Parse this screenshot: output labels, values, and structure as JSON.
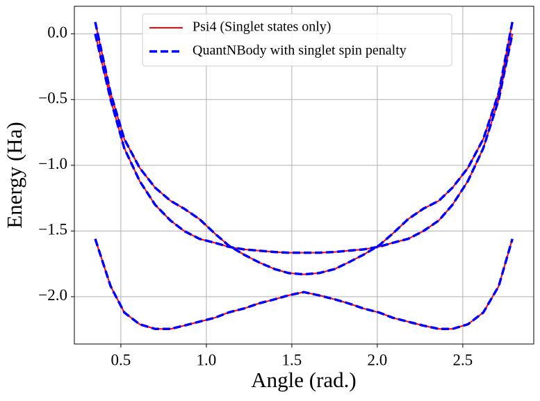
{
  "chart_data": {
    "type": "line",
    "xlabel": "Angle (rad.)",
    "ylabel": "Energy (Ha)",
    "xlim": [
      0.228,
      2.915
    ],
    "ylim": [
      -2.36,
      0.21
    ],
    "xticks": [
      {
        "value": 0.5,
        "label": "0.5"
      },
      {
        "value": 1.0,
        "label": "1.0"
      },
      {
        "value": 1.5,
        "label": "1.5"
      },
      {
        "value": 2.0,
        "label": "2.0"
      },
      {
        "value": 2.5,
        "label": "2.5"
      }
    ],
    "yticks": [
      {
        "value": 0.0,
        "label": "0.0"
      },
      {
        "value": -0.5,
        "label": "−0.5"
      },
      {
        "value": -1.0,
        "label": "−1.0"
      },
      {
        "value": -1.5,
        "label": "−1.5"
      },
      {
        "value": -2.0,
        "label": "−2.0"
      }
    ],
    "grid": true,
    "legend": "upper center",
    "x": [
      0.35,
      0.44,
      0.52,
      0.61,
      0.7,
      0.79,
      0.87,
      0.96,
      1.05,
      1.13,
      1.22,
      1.31,
      1.4,
      1.48,
      1.57,
      1.66,
      1.75,
      1.83,
      1.92,
      2.01,
      2.09,
      2.18,
      2.27,
      2.36,
      2.44,
      2.53,
      2.62,
      2.71,
      2.79
    ],
    "series": [
      {
        "name": "Psi4 (Singlet states only)",
        "color": "#ff0000",
        "dashed": false,
        "curves": [
          [
            -1.56,
            -1.92,
            -2.12,
            -2.21,
            -2.245,
            -2.245,
            -2.22,
            -2.19,
            -2.16,
            -2.12,
            -2.09,
            -2.05,
            -2.02,
            -1.99,
            -1.965,
            -1.99,
            -2.02,
            -2.05,
            -2.09,
            -2.12,
            -2.16,
            -2.19,
            -2.22,
            -2.245,
            -2.245,
            -2.21,
            -2.12,
            -1.92,
            -1.56
          ],
          [
            0.09,
            -0.45,
            -0.8,
            -1.02,
            -1.17,
            -1.27,
            -1.33,
            -1.41,
            -1.52,
            -1.61,
            -1.68,
            -1.74,
            -1.79,
            -1.82,
            -1.83,
            -1.82,
            -1.79,
            -1.74,
            -1.68,
            -1.61,
            -1.52,
            -1.41,
            -1.33,
            -1.27,
            -1.17,
            -1.02,
            -0.8,
            -0.45,
            0.09
          ],
          [
            0.0,
            -0.5,
            -0.87,
            -1.12,
            -1.3,
            -1.42,
            -1.5,
            -1.56,
            -1.59,
            -1.62,
            -1.64,
            -1.65,
            -1.66,
            -1.665,
            -1.665,
            -1.665,
            -1.66,
            -1.65,
            -1.64,
            -1.62,
            -1.59,
            -1.56,
            -1.5,
            -1.42,
            -1.3,
            -1.12,
            -0.87,
            -0.5,
            0.0
          ]
        ]
      },
      {
        "name": "QuantNBody with singlet spin penalty",
        "color": "#0000ff",
        "dashed": true,
        "curves": [
          [
            -1.56,
            -1.92,
            -2.12,
            -2.21,
            -2.245,
            -2.245,
            -2.22,
            -2.19,
            -2.16,
            -2.12,
            -2.09,
            -2.05,
            -2.02,
            -1.99,
            -1.965,
            -1.99,
            -2.02,
            -2.05,
            -2.09,
            -2.12,
            -2.16,
            -2.19,
            -2.22,
            -2.245,
            -2.245,
            -2.21,
            -2.12,
            -1.92,
            -1.56
          ],
          [
            0.09,
            -0.45,
            -0.8,
            -1.02,
            -1.17,
            -1.27,
            -1.33,
            -1.41,
            -1.52,
            -1.61,
            -1.68,
            -1.74,
            -1.79,
            -1.82,
            -1.83,
            -1.82,
            -1.79,
            -1.74,
            -1.68,
            -1.61,
            -1.52,
            -1.41,
            -1.33,
            -1.27,
            -1.17,
            -1.02,
            -0.8,
            -0.45,
            0.09
          ],
          [
            0.0,
            -0.5,
            -0.87,
            -1.12,
            -1.3,
            -1.42,
            -1.5,
            -1.56,
            -1.59,
            -1.62,
            -1.64,
            -1.65,
            -1.66,
            -1.665,
            -1.665,
            -1.665,
            -1.66,
            -1.65,
            -1.64,
            -1.62,
            -1.59,
            -1.56,
            -1.5,
            -1.42,
            -1.3,
            -1.12,
            -0.87,
            -0.5,
            0.0
          ]
        ]
      }
    ]
  }
}
